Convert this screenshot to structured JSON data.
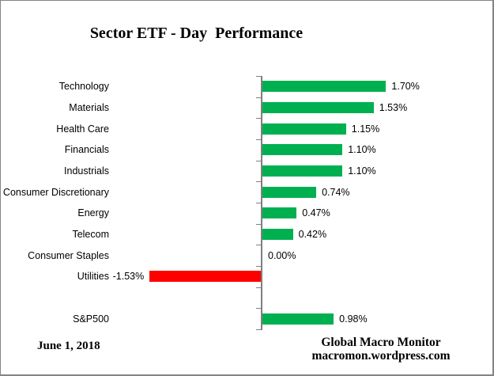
{
  "title": "Sector ETF - Day  Performance",
  "footer": {
    "date": "June 1, 2018",
    "credit_line1": "Global Macro Monitor",
    "credit_line2": "macromon.wordpress.com"
  },
  "chart_data": {
    "type": "bar",
    "orientation": "horizontal",
    "title": "Sector ETF - Day  Performance",
    "categories": [
      "Technology",
      "Materials",
      "Health Care",
      "Financials",
      "Industrials",
      "Consumer Discretionary",
      "Energy",
      "Telecom",
      "Consumer Staples",
      "Utilities",
      "",
      "S&P500"
    ],
    "values": [
      1.7,
      1.53,
      1.15,
      1.1,
      1.1,
      0.74,
      0.47,
      0.42,
      0.0,
      -1.53,
      null,
      0.98
    ],
    "labels": [
      "1.70%",
      "1.53%",
      "1.15%",
      "1.10%",
      "1.10%",
      "0.74%",
      "0.47%",
      "0.42%",
      "0.00%",
      "-1.53%",
      "",
      "0.98%"
    ],
    "xlabel": "",
    "ylabel": "",
    "grid": false,
    "legend": false,
    "zero_baseline": true,
    "positive_color": "#00B050",
    "negative_color": "#FF0000",
    "axis_color": "#7F7F7F",
    "label_color": "#000000"
  }
}
